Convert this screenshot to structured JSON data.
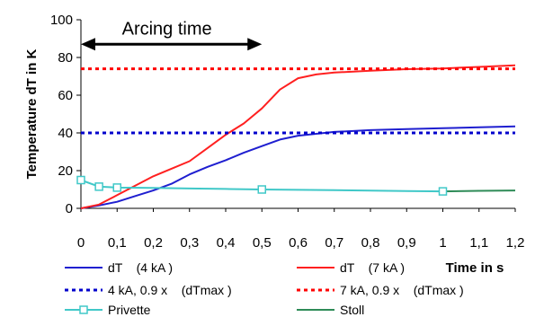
{
  "chart_data": {
    "type": "line",
    "title": "",
    "xlabel": "Time in s",
    "ylabel": "Temperature dT in K",
    "xlim": [
      0,
      1.2
    ],
    "ylim": [
      0,
      100
    ],
    "x_ticks": [
      0,
      0.1,
      0.2,
      0.3,
      0.4,
      0.5,
      0.6,
      0.7,
      0.8,
      0.9,
      1,
      1.1,
      1.2
    ],
    "x_tick_labels": [
      "0",
      "0,1",
      "0,2",
      "0,3",
      "0,4",
      "0,5",
      "0,6",
      "0,7",
      "0,8",
      "0,9",
      "1",
      "1,1",
      "1,2"
    ],
    "y_ticks": [
      0,
      20,
      40,
      60,
      80,
      100
    ],
    "y_tick_labels": [
      "0",
      "20",
      "40",
      "60",
      "80",
      "100"
    ],
    "grid": false,
    "legend_position": "bottom",
    "annotation": {
      "text": "Arcing time",
      "x_start": 0,
      "x_end": 0.5,
      "y": 87
    },
    "series": [
      {
        "name": "dT    (4 kA )",
        "color": "#1f1fd0",
        "style": "solid",
        "marker": "none",
        "x": [
          0,
          0.05,
          0.1,
          0.15,
          0.2,
          0.25,
          0.3,
          0.35,
          0.4,
          0.45,
          0.5,
          0.55,
          0.6,
          0.7,
          0.8,
          0.9,
          1.0,
          1.1,
          1.2
        ],
        "y": [
          0,
          1.5,
          3.5,
          6.5,
          9.5,
          13,
          18,
          22,
          25.5,
          29.5,
          33,
          36.5,
          38.5,
          40.5,
          41.5,
          42,
          42.5,
          43,
          43.5
        ]
      },
      {
        "name": "dT    (7 kA )",
        "color": "#ff2020",
        "style": "solid",
        "marker": "none",
        "x": [
          0,
          0.05,
          0.1,
          0.15,
          0.2,
          0.25,
          0.3,
          0.35,
          0.4,
          0.45,
          0.5,
          0.55,
          0.6,
          0.65,
          0.7,
          0.8,
          0.9,
          1.0,
          1.1,
          1.2
        ],
        "y": [
          0,
          2,
          7,
          12,
          17,
          21,
          25,
          32,
          39,
          45,
          53,
          63,
          69,
          71,
          72,
          73,
          73.8,
          74.2,
          75,
          75.8
        ]
      },
      {
        "name": "4 kA, 0.9 x    (dTmax )",
        "color": "#0000cc",
        "style": "dotted",
        "marker": "none",
        "x": [
          0,
          1.2
        ],
        "y": [
          40,
          40
        ]
      },
      {
        "name": "7 kA, 0.9 x    (dTmax )",
        "color": "#ff0000",
        "style": "dotted",
        "marker": "none",
        "x": [
          0,
          1.2
        ],
        "y": [
          74,
          74
        ]
      },
      {
        "name": "Privette",
        "color": "#40c8c8",
        "style": "solid",
        "marker": "square",
        "x": [
          0,
          0.05,
          0.1,
          0.2,
          0.3,
          0.4,
          0.5,
          0.6,
          0.7,
          0.8,
          0.9,
          1.0
        ],
        "y": [
          15,
          11.5,
          11,
          10.8,
          10.5,
          10.3,
          10,
          9.8,
          9.6,
          9.4,
          9.2,
          9
        ],
        "marker_x": [
          0,
          0.05,
          0.1,
          0.5,
          1.0
        ]
      },
      {
        "name": "Stoll",
        "color": "#2e8b57",
        "style": "solid",
        "marker": "none",
        "x": [
          1.0,
          1.1,
          1.2
        ],
        "y": [
          9,
          9.3,
          9.5
        ]
      }
    ]
  }
}
